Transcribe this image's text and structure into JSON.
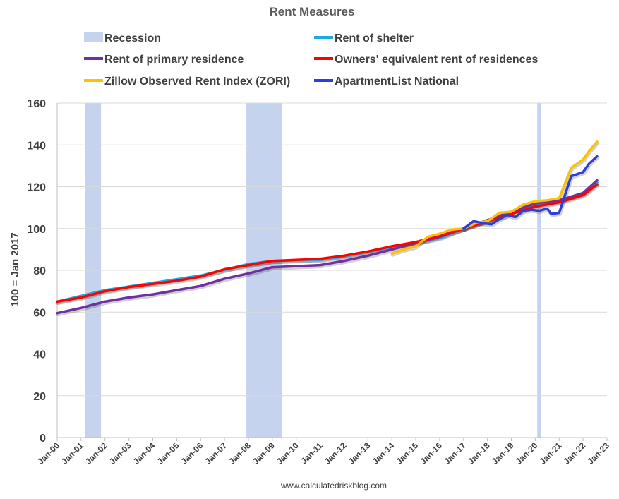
{
  "chart_data": {
    "type": "line",
    "title": "Rent Measures",
    "ylabel": "100 = Jan 2017",
    "xlabel": "",
    "ylim": [
      0,
      160
    ],
    "yticks": [
      0,
      20,
      40,
      60,
      80,
      100,
      120,
      140,
      160
    ],
    "xlim": [
      2000,
      2023
    ],
    "xticks": [
      "Jan-00",
      "Jan-01",
      "Jan-02",
      "Jan-03",
      "Jan-04",
      "Jan-05",
      "Jan-06",
      "Jan-07",
      "Jan-08",
      "Jan-09",
      "Jan-10",
      "Jan-11",
      "Jan-12",
      "Jan-13",
      "Jan-14",
      "Jan-15",
      "Jan-16",
      "Jan-17",
      "Jan-18",
      "Jan-19",
      "Jan-20",
      "Jan-21",
      "Jan-22",
      "Jan-23"
    ],
    "grid": "horizontal",
    "legend_position": "top",
    "source_note": "www.calculatedriskblog.com",
    "recessions": [
      {
        "start": "Mar-01",
        "end": "Nov-01"
      },
      {
        "start": "Dec-07",
        "end": "Jun-09"
      },
      {
        "start": "Feb-20",
        "end": "Apr-20"
      }
    ],
    "recession_label": "Recession",
    "recession_color": "#c5d3ee",
    "series": [
      {
        "name": "Rent of shelter",
        "color": "#1fa9e1",
        "x": [
          "Jan-00",
          "Jan-02",
          "Jan-04",
          "Jan-06",
          "Jan-08",
          "Jan-09",
          "Jan-10",
          "Jan-11",
          "Jan-12",
          "Jan-14",
          "Jan-16",
          "Jan-17",
          "Jan-18",
          "Jan-19",
          "Jan-20",
          "Jan-21",
          "Jan-22",
          "Aug-22"
        ],
        "values": [
          65,
          70.5,
          74,
          77.5,
          83,
          84.5,
          84.8,
          85,
          86.5,
          91,
          95.5,
          100,
          104,
          108,
          111,
          113,
          116.5,
          122
        ]
      },
      {
        "name": "Rent of primary residence",
        "color": "#7030a0",
        "x": [
          "Jan-00",
          "Jan-01",
          "Jan-02",
          "Jan-03",
          "Jan-04",
          "Jan-05",
          "Jan-06",
          "Jan-07",
          "Jan-08",
          "Jan-09",
          "Jan-10",
          "Jan-11",
          "Jan-12",
          "Jan-13",
          "Jan-14",
          "Jan-15",
          "Jan-16",
          "Jan-17",
          "Jan-18",
          "Jan-19",
          "Jan-20",
          "Jan-21",
          "Jan-22",
          "Aug-22"
        ],
        "values": [
          59.5,
          62,
          65,
          67,
          68.5,
          70.5,
          72.5,
          76,
          78.5,
          81.5,
          82,
          82.5,
          84.5,
          87,
          90,
          93,
          96,
          100,
          104,
          108,
          112,
          113.5,
          117,
          123
        ]
      },
      {
        "name": "Owners' equivalent rent of residences",
        "color": "#ff0000",
        "x": [
          "Jan-00",
          "Jan-01",
          "Jan-02",
          "Jan-03",
          "Jan-04",
          "Jan-05",
          "Jan-06",
          "Jan-07",
          "Jan-08",
          "Jan-09",
          "Jan-10",
          "Jan-11",
          "Jan-12",
          "Jan-13",
          "Jan-14",
          "Jan-15",
          "Jan-16",
          "Jan-17",
          "Jan-18",
          "Jan-19",
          "Jan-20",
          "Jan-21",
          "Jan-22",
          "Aug-22"
        ],
        "values": [
          65,
          67,
          70,
          72,
          73.5,
          75,
          77,
          80.5,
          82.5,
          84.5,
          85,
          85.5,
          87,
          89,
          91.5,
          93.5,
          96.5,
          100,
          103.5,
          107,
          110.5,
          112.5,
          116,
          121
        ]
      },
      {
        "name": "Zillow Observed Rent Index (ZORI)",
        "color": "#ffc000",
        "x": [
          "Jan-14",
          "Jul-14",
          "Jan-15",
          "Jul-15",
          "Jan-16",
          "Jul-16",
          "Jan-17",
          "Jul-17",
          "Jan-18",
          "Jul-18",
          "Jan-19",
          "Jul-19",
          "Jan-20",
          "Jul-20",
          "Jan-21",
          "Jul-21",
          "Jan-22",
          "Apr-22",
          "Aug-22"
        ],
        "values": [
          88,
          90,
          91.5,
          96,
          97.5,
          99.5,
          100,
          102.5,
          103.5,
          107.5,
          108,
          111.5,
          113,
          113.5,
          114.5,
          129,
          133,
          137,
          141.5
        ]
      },
      {
        "name": "ApartmentList National",
        "color": "#2e3fd9",
        "x": [
          "Jan-17",
          "Jun-17",
          "Nov-17",
          "Mar-18",
          "Jul-18",
          "Nov-18",
          "Mar-19",
          "Jul-19",
          "Nov-19",
          "Mar-20",
          "Jul-20",
          "Sep-20",
          "Jan-21",
          "Jul-21",
          "Jan-22",
          "Apr-22",
          "Aug-22"
        ],
        "values": [
          100,
          103.5,
          102.5,
          102,
          104.5,
          106.5,
          105.5,
          108.5,
          109,
          108.5,
          109.5,
          107,
          107.5,
          125,
          127,
          131,
          134.5
        ]
      }
    ]
  }
}
